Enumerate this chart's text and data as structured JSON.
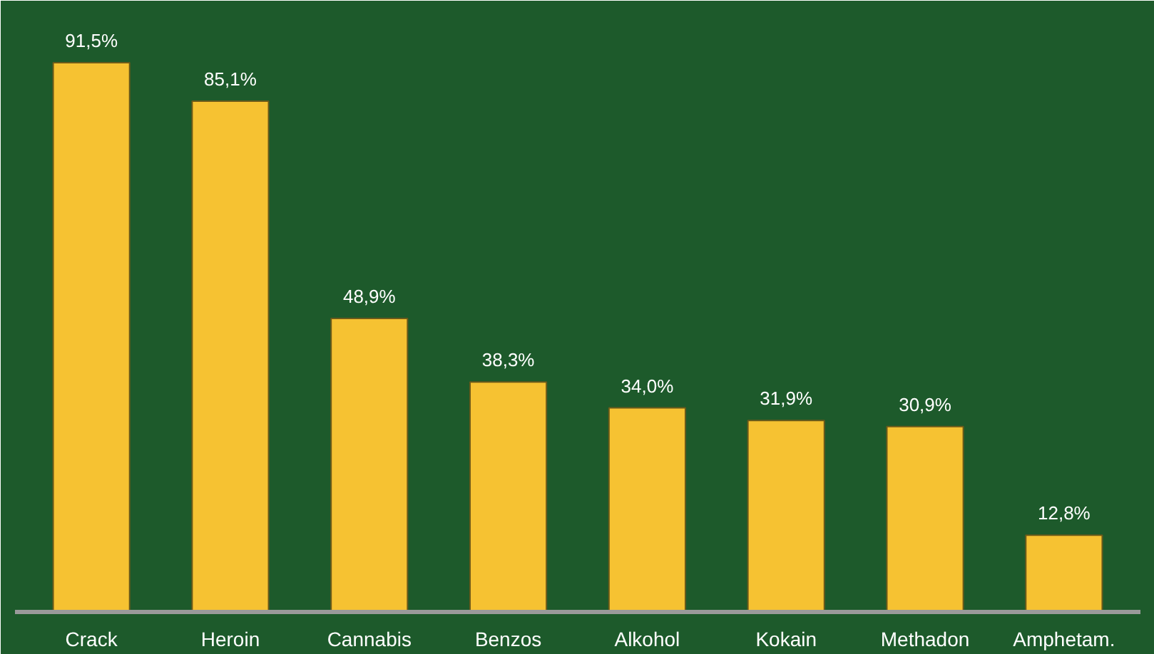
{
  "chart_data": {
    "type": "bar",
    "categories": [
      "Crack",
      "Heroin",
      "Cannabis",
      "Benzos",
      "Alkohol",
      "Kokain",
      "Methadon",
      "Amphetam."
    ],
    "values": [
      91.5,
      85.1,
      48.9,
      38.3,
      34.0,
      31.9,
      30.9,
      12.8
    ],
    "value_labels": [
      "91,5%",
      "85,1%",
      "48,9%",
      "38,3%",
      "34,0%",
      "31,9%",
      "30,9%",
      "12,8%"
    ],
    "color": "#f6c232",
    "grid": false
  }
}
